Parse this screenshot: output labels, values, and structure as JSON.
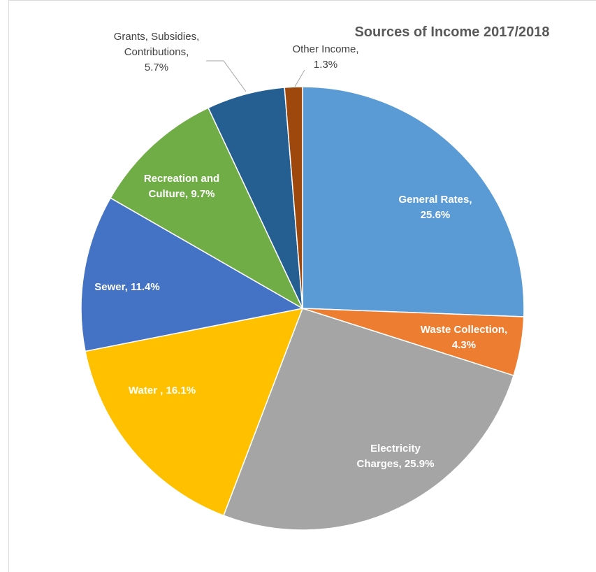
{
  "chart_data": {
    "type": "pie",
    "title": "Sources of Income 2017/2018",
    "slices": [
      {
        "name": "General Rates",
        "value": 25.6,
        "color": "#5B9BD5",
        "label_lines": [
          "General Rates,",
          "25.6%"
        ]
      },
      {
        "name": "Waste Collection",
        "value": 4.3,
        "color": "#ED7D31",
        "label_lines": [
          "Waste Collection,",
          "4.3%"
        ]
      },
      {
        "name": "Electricity Charges",
        "value": 25.9,
        "color": "#A5A5A5",
        "label_lines": [
          "Electricity",
          "Charges, 25.9%"
        ]
      },
      {
        "name": "Water",
        "value": 16.1,
        "color": "#FFC000",
        "label_lines": [
          "Water , 16.1%"
        ]
      },
      {
        "name": "Sewer",
        "value": 11.4,
        "color": "#4472C4",
        "label_lines": [
          "Sewer, 11.4%"
        ]
      },
      {
        "name": "Recreation and Culture",
        "value": 9.7,
        "color": "#70AD47",
        "label_lines": [
          "Recreation and",
          "Culture, 9.7%"
        ]
      },
      {
        "name": "Grants, Subsidies, Contributions",
        "value": 5.7,
        "color": "#255E91",
        "label_lines": [
          "Grants, Subsidies,",
          "Contributions,",
          "5.7%"
        ]
      },
      {
        "name": "Other Income",
        "value": 1.3,
        "color": "#9E480E",
        "label_lines": [
          "Other Income,",
          "1.3%"
        ]
      }
    ]
  }
}
